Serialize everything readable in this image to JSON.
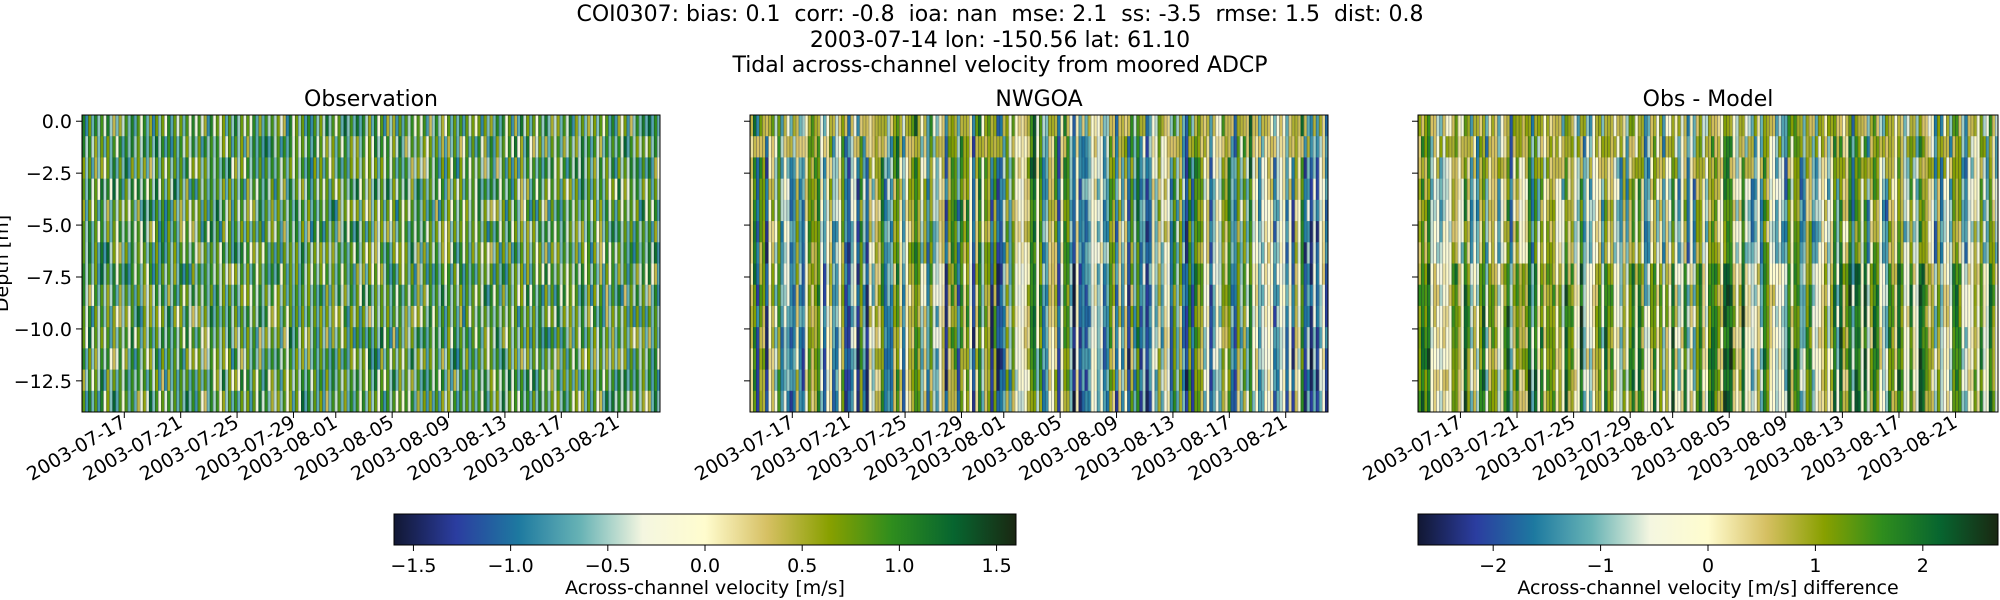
{
  "figure": {
    "title_lines": [
      "COI0307: bias: 0.1  corr: -0.8  ioa: nan  mse: 2.1  ss: -3.5  rmse: 1.5  dist: 0.8",
      "2003-07-14 lon: -150.56 lat: 61.10",
      "Tidal across-channel velocity from moored ADCP"
    ]
  },
  "chart_data": [
    {
      "type": "heatmap",
      "title": "Observation",
      "ylabel": "Depth [m]",
      "ylim": [
        -14.0,
        0.3
      ],
      "yticks": [
        0.0,
        -2.5,
        -5.0,
        -7.5,
        -10.0,
        -12.5
      ],
      "ytick_labels": [
        "0.0",
        "−2.5",
        "−5.0",
        "−7.5",
        "−10.0",
        "−12.5"
      ],
      "xlim": [
        "2003-07-14",
        "2003-08-24"
      ],
      "xticks": [
        "2003-07-17",
        "2003-07-21",
        "2003-07-25",
        "2003-07-29",
        "2003-08-01",
        "2003-08-05",
        "2003-08-09",
        "2003-08-13",
        "2003-08-17",
        "2003-08-21"
      ],
      "colormap": "delta",
      "clim": [
        -1.6,
        1.6
      ],
      "pattern": "obs"
    },
    {
      "type": "heatmap",
      "title": "NWGOA",
      "ylim": [
        -14.0,
        0.3
      ],
      "yticks": [
        0.0,
        -2.5,
        -5.0,
        -7.5,
        -10.0,
        -12.5
      ],
      "xlim": [
        "2003-07-14",
        "2003-08-24"
      ],
      "xticks": [
        "2003-07-17",
        "2003-07-21",
        "2003-07-25",
        "2003-07-29",
        "2003-08-01",
        "2003-08-05",
        "2003-08-09",
        "2003-08-13",
        "2003-08-17",
        "2003-08-21"
      ],
      "colormap": "delta",
      "clim": [
        -1.6,
        1.6
      ],
      "pattern": "model"
    },
    {
      "type": "heatmap",
      "title": "Obs - Model",
      "ylim": [
        -14.0,
        0.3
      ],
      "yticks": [
        0.0,
        -2.5,
        -5.0,
        -7.5,
        -10.0,
        -12.5
      ],
      "xlim": [
        "2003-07-14",
        "2003-08-24"
      ],
      "xticks": [
        "2003-07-17",
        "2003-07-21",
        "2003-07-25",
        "2003-07-29",
        "2003-08-01",
        "2003-08-05",
        "2003-08-09",
        "2003-08-13",
        "2003-08-17",
        "2003-08-21"
      ],
      "colormap": "delta",
      "clim": [
        -2.7,
        2.7
      ],
      "pattern": "diff"
    }
  ],
  "colorbars": [
    {
      "label": "Across-channel velocity [m/s]",
      "vmin": -1.6,
      "vmax": 1.6,
      "ticks": [
        -1.5,
        -1.0,
        -0.5,
        0.0,
        0.5,
        1.0,
        1.5
      ],
      "tick_labels": [
        "−1.5",
        "−1.0",
        "−0.5",
        "0.0",
        "0.5",
        "1.0",
        "1.5"
      ]
    },
    {
      "label": "Across-channel velocity [m/s] difference",
      "vmin": -2.7,
      "vmax": 2.7,
      "ticks": [
        -2,
        -1,
        0,
        1,
        2
      ],
      "tick_labels": [
        "−2",
        "−1",
        "0",
        "1",
        "2"
      ]
    }
  ],
  "colormap_stops": [
    "#111733",
    "#2b3da0",
    "#1d79a0",
    "#68b3b5",
    "#f4f6e0",
    "#fffcce",
    "#d6c063",
    "#88a000",
    "#2f8d1d",
    "#07652f",
    "#1a2712"
  ]
}
